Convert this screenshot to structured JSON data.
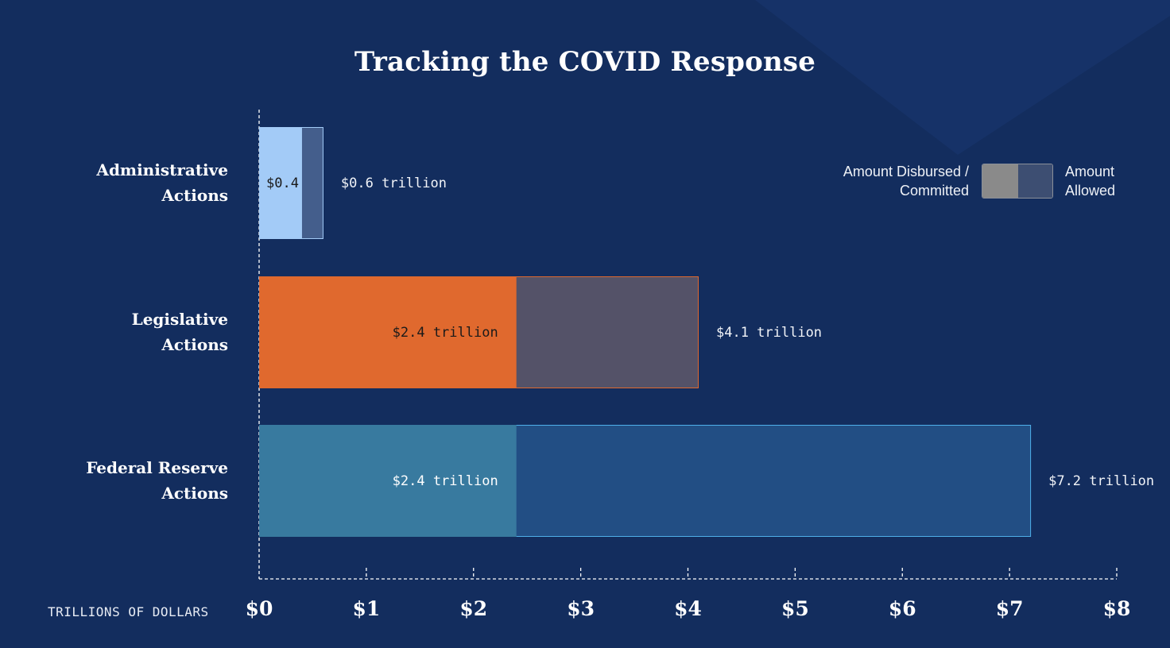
{
  "chart_data": {
    "type": "bar",
    "orientation": "horizontal",
    "title": "Tracking the COVID Response",
    "xlabel": "TRILLIONS OF DOLLARS",
    "ylabel": "",
    "xlim": [
      0,
      8
    ],
    "x_ticks": [
      0,
      1,
      2,
      3,
      4,
      5,
      6,
      7,
      8
    ],
    "x_tick_labels": [
      "$0",
      "$1",
      "$2",
      "$3",
      "$4",
      "$5",
      "$6",
      "$7",
      "$8"
    ],
    "grid": false,
    "legend_position": "top-right",
    "categories": [
      [
        "Administrative",
        "Actions"
      ],
      [
        "Legislative",
        "Actions"
      ],
      [
        "Federal Reserve",
        "Actions"
      ]
    ],
    "series": [
      {
        "name": "Amount Disbursed / Committed",
        "values": [
          0.4,
          2.4,
          2.4
        ],
        "labels": [
          "$0.4",
          "$2.4 trillion",
          "$2.4 trillion"
        ]
      },
      {
        "name": "Amount Allowed",
        "values": [
          0.6,
          4.1,
          7.2
        ],
        "labels": [
          "$0.6 trillion",
          "$4.1 trillion",
          "$7.2 trillion"
        ]
      }
    ],
    "colors": {
      "disbursed": [
        "#a3cbf7",
        "#e0692e",
        "#387a9f"
      ],
      "allowed": [
        "#445e8c",
        "#545268",
        "#224e84"
      ],
      "allowed_border": [
        "#a3cbf7",
        "#e0692e",
        "#4fb0ea"
      ],
      "inner_label": [
        "#1a1a1a",
        "#1a1a1a",
        "#ffffff"
      ]
    }
  },
  "legend": {
    "left_line1": "Amount Disbursed /",
    "left_line2": "Committed",
    "right_line1": "Amount",
    "right_line2": "Allowed"
  }
}
